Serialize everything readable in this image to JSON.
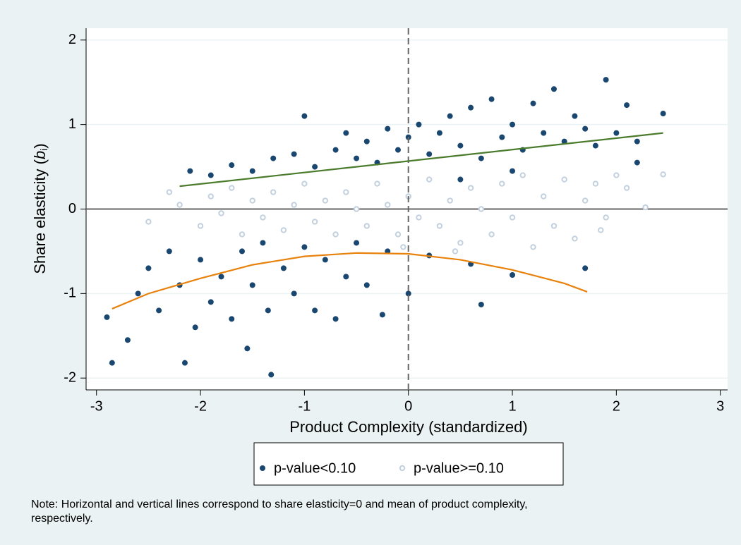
{
  "chart_data": {
    "type": "scatter",
    "xlabel": "Product Complexity (standardized)",
    "ylabel": [
      "Share elasticity (",
      "b",
      "i",
      ")"
    ],
    "note": [
      "Note: Horizontal and vertical lines correspond to share elasticity=0 and mean of product complexity,",
      "respectively."
    ],
    "xlim": [
      -3.1,
      3.07
    ],
    "xticks": [
      -3,
      -2,
      -1,
      0,
      1,
      2,
      3
    ],
    "ylim": [
      -2.14,
      2.14
    ],
    "yticks": [
      -2,
      -1,
      0,
      1,
      2
    ],
    "grid": true,
    "reference_lines": {
      "x": 0,
      "y": 0
    },
    "legend": "bottom",
    "series": [
      {
        "name": "p-value<0.10",
        "color": "#1a476f",
        "x": [
          -2.1,
          -1.9,
          -1.7,
          -1.5,
          -1.3,
          -1.1,
          -1.0,
          -0.9,
          -0.7,
          -0.6,
          -0.5,
          -0.4,
          -0.3,
          -0.2,
          -0.1,
          0,
          0.1,
          0.2,
          0.3,
          0.4,
          0.5,
          0.6,
          0.7,
          0.8,
          0.9,
          1.0,
          1.1,
          1.2,
          1.3,
          1.4,
          1.5,
          1.6,
          1.7,
          1.8,
          1.9,
          2.0,
          2.1,
          2.2,
          2.45,
          2.2,
          1.0,
          0.5,
          -2.9,
          -2.85,
          -2.7,
          -2.6,
          -2.5,
          -2.4,
          -2.3,
          -2.2,
          -2.15,
          -2.05,
          -2.0,
          -1.9,
          -1.8,
          -1.7,
          -1.6,
          -1.55,
          -1.5,
          -1.4,
          -1.35,
          -1.32,
          -1.2,
          -1.1,
          -1.0,
          -0.9,
          -0.8,
          -0.7,
          -0.6,
          -0.5,
          -0.4,
          -0.2,
          0,
          0.2,
          0.6,
          1.0,
          1.7,
          0.7,
          -0.25
        ],
        "values": [
          0.45,
          0.4,
          0.52,
          0.45,
          0.6,
          0.65,
          1.1,
          0.5,
          0.7,
          0.9,
          0.6,
          0.8,
          0.55,
          0.95,
          0.7,
          0.85,
          1.0,
          0.65,
          0.9,
          1.1,
          0.75,
          1.2,
          0.6,
          1.3,
          0.85,
          1.0,
          0.7,
          1.25,
          0.9,
          1.42,
          0.8,
          1.1,
          0.95,
          0.75,
          1.53,
          0.9,
          1.23,
          0.8,
          1.13,
          0.55,
          0.45,
          0.35,
          -1.28,
          -1.82,
          -1.55,
          -1.0,
          -0.7,
          -1.2,
          -0.5,
          -0.9,
          -1.82,
          -1.4,
          -0.6,
          -1.1,
          -0.8,
          -1.3,
          -0.5,
          -1.65,
          -0.9,
          -0.4,
          -1.2,
          -1.96,
          -0.7,
          -1.0,
          -0.45,
          -1.2,
          -0.6,
          -1.3,
          -0.8,
          -0.4,
          -0.9,
          -0.5,
          -1.0,
          -0.55,
          -0.65,
          -0.78,
          -0.7,
          -1.13,
          -1.25
        ]
      },
      {
        "name": "p-value>=0.10",
        "color": "#c3d0de",
        "x": [
          -2.5,
          -2.3,
          -2.2,
          -2.0,
          -1.9,
          -1.8,
          -1.7,
          -1.6,
          -1.5,
          -1.4,
          -1.3,
          -1.2,
          -1.1,
          -1.0,
          -0.9,
          -0.8,
          -0.7,
          -0.6,
          -0.5,
          -0.4,
          -0.3,
          -0.2,
          -0.1,
          0,
          0.1,
          0.2,
          0.3,
          0.4,
          0.5,
          0.6,
          0.7,
          0.8,
          0.9,
          1.0,
          1.1,
          1.2,
          1.3,
          1.4,
          1.5,
          1.6,
          1.7,
          1.8,
          1.9,
          2.0,
          2.1,
          2.28,
          2.45,
          1.85,
          0.45,
          -0.05
        ],
        "values": [
          -0.15,
          0.2,
          0.05,
          -0.2,
          0.15,
          -0.05,
          0.25,
          -0.3,
          0.1,
          -0.1,
          0.2,
          -0.25,
          0.05,
          0.3,
          -0.15,
          0.1,
          -0.3,
          0.2,
          0,
          -0.2,
          0.3,
          0.05,
          -0.3,
          0.15,
          -0.1,
          0.35,
          -0.2,
          0.1,
          -0.4,
          0.25,
          0,
          -0.3,
          0.3,
          -0.1,
          0.4,
          -0.45,
          0.15,
          -0.2,
          0.35,
          -0.35,
          0.1,
          0.3,
          -0.1,
          0.4,
          0.25,
          0.02,
          0.41,
          -0.25,
          -0.5,
          -0.45
        ]
      }
    ],
    "fit_lines": [
      {
        "color": "#4b7b2c",
        "x": [
          -2.2,
          2.45
        ],
        "values": [
          0.27,
          0.9
        ]
      },
      {
        "color": "#e8820c",
        "x": [
          -2.85,
          -2.5,
          -2,
          -1.5,
          -1,
          -0.5,
          0,
          0.5,
          1,
          1.5,
          1.72
        ],
        "values": [
          -1.18,
          -1.0,
          -0.82,
          -0.66,
          -0.56,
          -0.52,
          -0.53,
          -0.6,
          -0.72,
          -0.88,
          -0.98
        ]
      }
    ]
  }
}
